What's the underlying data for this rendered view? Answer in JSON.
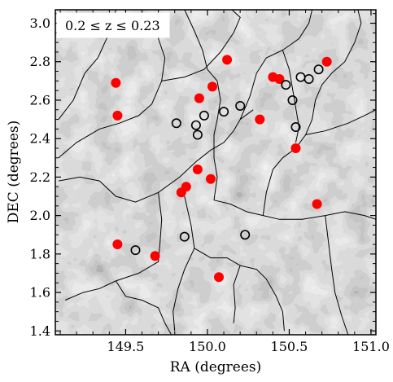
{
  "chart_data": {
    "type": "scatter",
    "annotation": "0.2 ≤ z ≤ 0.23",
    "xlabel": "RA (degrees)",
    "ylabel": "DEC (degrees)",
    "xlim": [
      149.07,
      151.03
    ],
    "ylim": [
      1.38,
      3.07
    ],
    "xticks": [
      149.5,
      150.0,
      150.5,
      151.0
    ],
    "xtick_labels": [
      "149.5",
      "150.0",
      "150.5",
      "151.0"
    ],
    "yticks": [
      1.4,
      1.6,
      1.8,
      2.0,
      2.2,
      2.4,
      2.6,
      2.8,
      3.0
    ],
    "ytick_labels": [
      "1.4",
      "1.6",
      "1.8",
      "2.0",
      "2.2",
      "2.4",
      "2.6",
      "2.8",
      "3.0"
    ],
    "grid": false,
    "background": "grayscale density map (Voronoi tessellation) with black filament lines",
    "colors": {
      "filled_marker": "#ff0000",
      "open_marker_edge": "#000000",
      "filament": "#000000"
    },
    "series": [
      {
        "marker": "filled-circle",
        "color": "#ff0000",
        "points": [
          {
            "x": 149.44,
            "y": 2.69
          },
          {
            "x": 149.45,
            "y": 2.52
          },
          {
            "x": 149.45,
            "y": 1.85
          },
          {
            "x": 149.68,
            "y": 1.79
          },
          {
            "x": 149.84,
            "y": 2.12
          },
          {
            "x": 149.87,
            "y": 2.15
          },
          {
            "x": 149.94,
            "y": 2.24
          },
          {
            "x": 149.95,
            "y": 2.61
          },
          {
            "x": 150.02,
            "y": 2.19
          },
          {
            "x": 150.03,
            "y": 2.67
          },
          {
            "x": 150.07,
            "y": 1.68
          },
          {
            "x": 150.12,
            "y": 2.81
          },
          {
            "x": 150.32,
            "y": 2.5
          },
          {
            "x": 150.4,
            "y": 2.72
          },
          {
            "x": 150.44,
            "y": 2.71
          },
          {
            "x": 150.54,
            "y": 2.35
          },
          {
            "x": 150.67,
            "y": 2.06
          },
          {
            "x": 150.73,
            "y": 2.8
          }
        ]
      },
      {
        "marker": "open-circle",
        "color": "#000000",
        "points": [
          {
            "x": 149.56,
            "y": 1.82
          },
          {
            "x": 149.81,
            "y": 2.48
          },
          {
            "x": 149.86,
            "y": 1.89
          },
          {
            "x": 149.93,
            "y": 2.47
          },
          {
            "x": 149.94,
            "y": 2.42
          },
          {
            "x": 149.98,
            "y": 2.52
          },
          {
            "x": 150.1,
            "y": 2.54
          },
          {
            "x": 150.2,
            "y": 2.57
          },
          {
            "x": 150.23,
            "y": 1.9
          },
          {
            "x": 150.48,
            "y": 2.68
          },
          {
            "x": 150.52,
            "y": 2.6
          },
          {
            "x": 150.54,
            "y": 2.46
          },
          {
            "x": 150.57,
            "y": 2.72
          },
          {
            "x": 150.62,
            "y": 2.71
          },
          {
            "x": 150.68,
            "y": 2.76
          }
        ]
      }
    ],
    "filaments": [
      [
        [
          149.09,
          2.5
        ],
        [
          149.18,
          2.6
        ],
        [
          149.25,
          2.74
        ],
        [
          149.33,
          2.82
        ],
        [
          149.4,
          2.95
        ],
        [
          149.44,
          3.07
        ]
      ],
      [
        [
          149.09,
          2.3
        ],
        [
          149.2,
          2.38
        ],
        [
          149.34,
          2.45
        ],
        [
          149.46,
          2.48
        ],
        [
          149.58,
          2.52
        ],
        [
          149.66,
          2.58
        ],
        [
          149.72,
          2.7
        ],
        [
          149.74,
          2.82
        ],
        [
          149.7,
          2.92
        ],
        [
          149.75,
          3.05
        ]
      ],
      [
        [
          149.72,
          2.7
        ],
        [
          149.86,
          2.72
        ],
        [
          149.98,
          2.76
        ],
        [
          150.08,
          2.85
        ],
        [
          150.16,
          2.95
        ],
        [
          150.2,
          3.03
        ],
        [
          150.15,
          3.07
        ]
      ],
      [
        [
          149.86,
          3.07
        ],
        [
          149.92,
          2.96
        ],
        [
          149.97,
          2.86
        ],
        [
          150.0,
          2.76
        ]
      ],
      [
        [
          149.09,
          2.18
        ],
        [
          149.22,
          2.2
        ],
        [
          149.34,
          2.18
        ],
        [
          149.44,
          2.1
        ],
        [
          149.56,
          2.07
        ],
        [
          149.7,
          2.12
        ],
        [
          149.83,
          2.2
        ],
        [
          149.93,
          2.28
        ],
        [
          150.02,
          2.34
        ],
        [
          150.1,
          2.38
        ],
        [
          150.16,
          2.44
        ],
        [
          150.2,
          2.5
        ],
        [
          150.28,
          2.55
        ]
      ],
      [
        [
          149.7,
          2.12
        ],
        [
          149.72,
          1.98
        ],
        [
          149.71,
          1.86
        ],
        [
          149.7,
          1.76
        ],
        [
          149.58,
          1.7
        ],
        [
          149.44,
          1.66
        ],
        [
          149.34,
          1.62
        ],
        [
          149.24,
          1.6
        ],
        [
          149.13,
          1.56
        ]
      ],
      [
        [
          149.44,
          1.66
        ],
        [
          149.5,
          1.58
        ],
        [
          149.6,
          1.56
        ],
        [
          149.7,
          1.52
        ],
        [
          149.74,
          1.44
        ],
        [
          149.78,
          1.38
        ]
      ],
      [
        [
          149.86,
          2.1
        ],
        [
          149.9,
          1.95
        ],
        [
          149.92,
          1.83
        ],
        [
          149.86,
          1.72
        ],
        [
          149.82,
          1.62
        ],
        [
          149.79,
          1.5
        ],
        [
          149.8,
          1.4
        ]
      ],
      [
        [
          149.92,
          1.83
        ],
        [
          150.02,
          1.78
        ],
        [
          150.12,
          1.78
        ],
        [
          150.2,
          1.74
        ],
        [
          150.3,
          1.72
        ],
        [
          150.36,
          1.67
        ],
        [
          150.42,
          1.58
        ],
        [
          150.46,
          1.5
        ],
        [
          150.47,
          1.4
        ]
      ],
      [
        [
          150.2,
          1.74
        ],
        [
          150.16,
          1.64
        ],
        [
          150.17,
          1.52
        ],
        [
          150.16,
          1.44
        ]
      ],
      [
        [
          150.04,
          2.08
        ],
        [
          150.14,
          2.06
        ],
        [
          150.24,
          2.02
        ],
        [
          150.34,
          2.0
        ],
        [
          150.44,
          1.98
        ],
        [
          150.58,
          1.98
        ],
        [
          150.72,
          2.0
        ],
        [
          150.84,
          2.02
        ],
        [
          150.96,
          2.0
        ],
        [
          151.03,
          1.98
        ]
      ],
      [
        [
          150.34,
          2.0
        ],
        [
          150.36,
          2.12
        ],
        [
          150.4,
          2.24
        ],
        [
          150.46,
          2.3
        ],
        [
          150.54,
          2.35
        ],
        [
          150.6,
          2.42
        ],
        [
          150.64,
          2.5
        ],
        [
          150.66,
          2.6
        ],
        [
          150.7,
          2.68
        ],
        [
          150.76,
          2.74
        ],
        [
          150.84,
          2.8
        ],
        [
          150.9,
          2.9
        ],
        [
          150.94,
          3.0
        ],
        [
          150.92,
          3.07
        ]
      ],
      [
        [
          150.6,
          2.42
        ],
        [
          150.72,
          2.44
        ],
        [
          150.86,
          2.48
        ],
        [
          150.96,
          2.52
        ],
        [
          151.03,
          2.55
        ]
      ],
      [
        [
          150.72,
          2.0
        ],
        [
          150.74,
          1.86
        ],
        [
          150.76,
          1.72
        ],
        [
          150.78,
          1.6
        ],
        [
          150.82,
          1.48
        ],
        [
          150.86,
          1.38
        ]
      ],
      [
        [
          150.2,
          2.5
        ],
        [
          150.26,
          2.62
        ],
        [
          150.3,
          2.74
        ],
        [
          150.36,
          2.82
        ],
        [
          150.46,
          2.86
        ],
        [
          150.56,
          2.92
        ],
        [
          150.62,
          3.0
        ],
        [
          150.64,
          3.07
        ]
      ],
      [
        [
          150.46,
          2.86
        ],
        [
          150.5,
          2.76
        ],
        [
          150.52,
          2.66
        ],
        [
          150.54,
          2.56
        ],
        [
          150.56,
          2.46
        ],
        [
          150.54,
          2.38
        ]
      ],
      [
        [
          150.0,
          2.76
        ],
        [
          150.06,
          2.7
        ],
        [
          150.08,
          2.6
        ],
        [
          150.06,
          2.5
        ],
        [
          150.04,
          2.42
        ],
        [
          150.04,
          2.3
        ],
        [
          150.06,
          2.2
        ],
        [
          150.04,
          2.08
        ]
      ]
    ]
  }
}
